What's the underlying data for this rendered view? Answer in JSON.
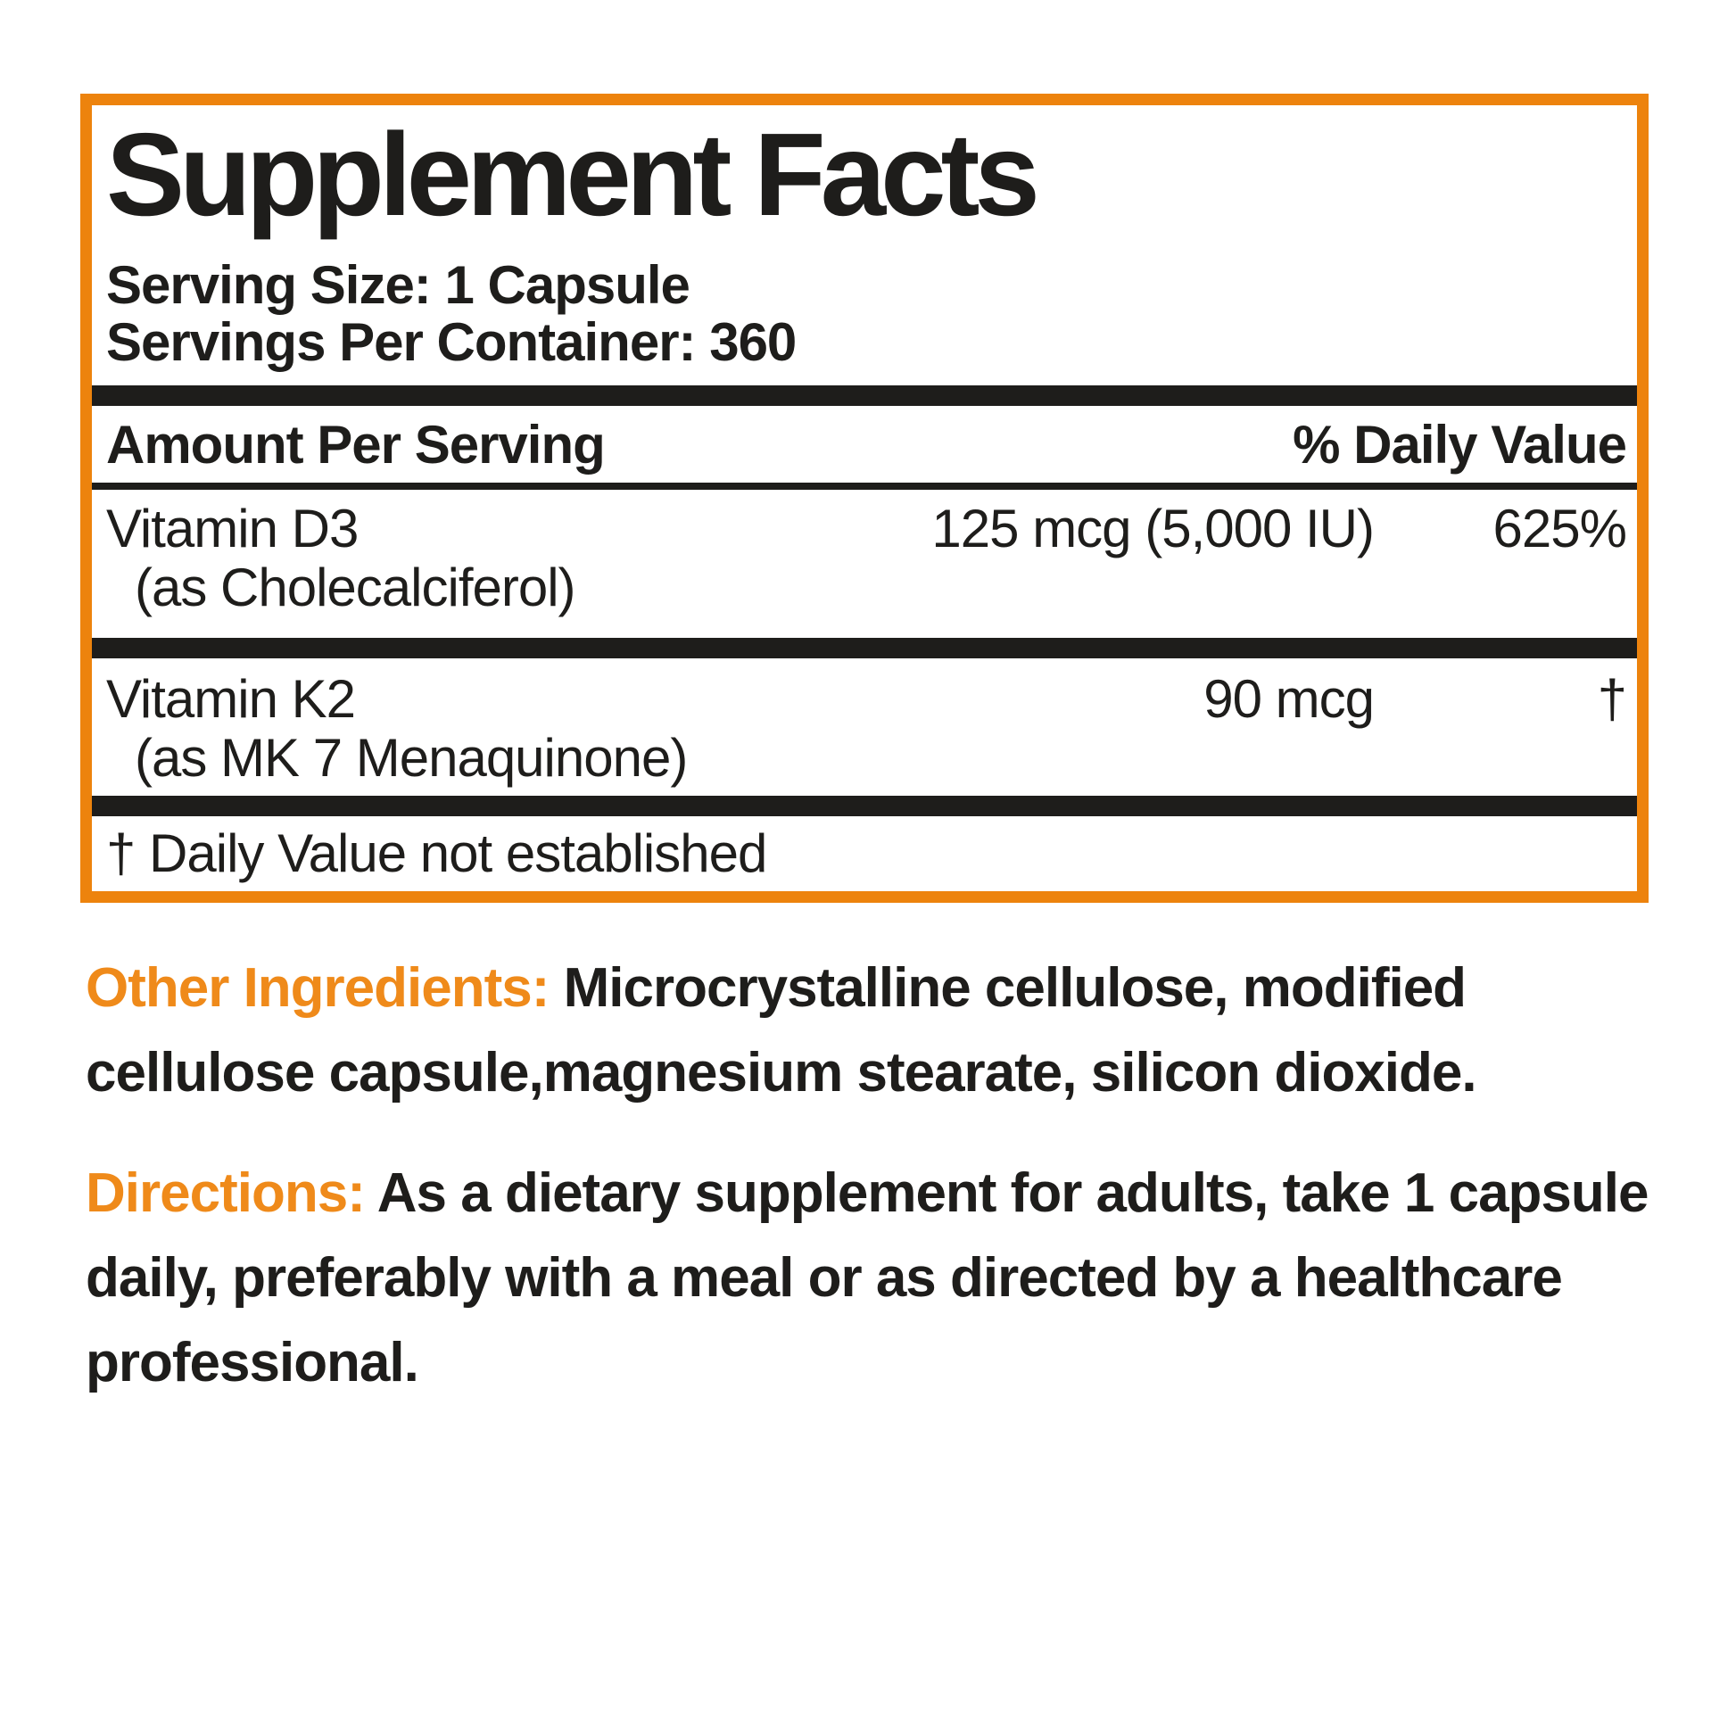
{
  "colors": {
    "border_orange": "#ED830D",
    "heading_orange": "#EF8A1A",
    "ink": "#1E1D1B"
  },
  "panel": {
    "title": "Supplement Facts",
    "serving_size": "Serving Size: 1 Capsule",
    "servings_per_container": "Servings Per Container: 360",
    "header": {
      "amount": "Amount Per Serving",
      "daily_value": "% Daily Value"
    },
    "rows": [
      {
        "name": "Vitamin D3",
        "detail": "(as Cholecalciferol)",
        "amount": "125 mcg (5,000 IU)",
        "dv": "625%"
      },
      {
        "name": "Vitamin K2",
        "detail": "(as MK 7 Menaquinone)",
        "amount": "90 mcg",
        "dv": "†"
      }
    ],
    "footnote": "† Daily Value not established"
  },
  "other_ingredients": {
    "label": "Other Ingredients:",
    "text": "Microcrystalline cellulose, modified cellulose capsule,magnesium stearate, silicon dioxide."
  },
  "directions": {
    "label": "Directions:",
    "text": "As a dietary supplement for adults, take 1 capsule daily, preferably with a meal or as directed by a healthcare professional."
  }
}
